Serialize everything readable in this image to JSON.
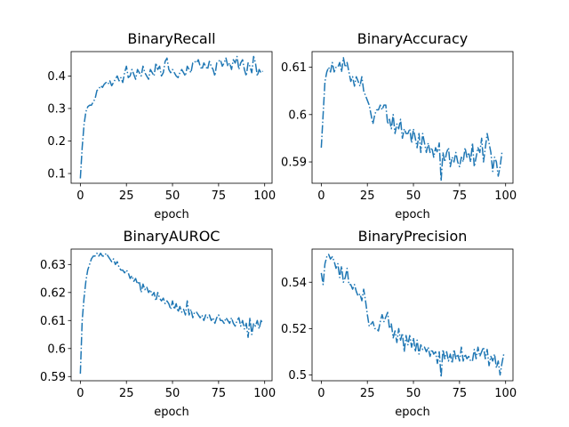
{
  "chart_data": [
    {
      "type": "line",
      "title": "BinaryRecall",
      "xlabel": "epoch",
      "ylabel": "",
      "xlim": [
        -5,
        104
      ],
      "ylim": [
        0.07,
        0.475
      ],
      "xticks": [
        0,
        25,
        50,
        75,
        100
      ],
      "yticks": [
        0.1,
        0.2,
        0.3,
        0.4
      ],
      "line_style": "dashdot",
      "color": "#1f77b4",
      "grid": false,
      "series": [
        {
          "x": [
            0,
            1,
            2,
            3,
            4,
            5,
            6,
            7,
            8,
            9,
            10,
            11,
            12,
            13,
            14,
            15,
            16,
            17,
            18,
            19,
            20,
            21,
            22,
            23,
            24,
            25,
            26,
            27,
            28,
            29,
            30,
            31,
            32,
            33,
            34,
            35,
            36,
            37,
            38,
            39,
            40,
            41,
            42,
            43,
            44,
            45,
            46,
            47,
            48,
            49,
            50,
            51,
            52,
            53,
            54,
            55,
            56,
            57,
            58,
            59,
            60,
            61,
            62,
            63,
            64,
            65,
            66,
            67,
            68,
            69,
            70,
            71,
            72,
            73,
            74,
            75,
            76,
            77,
            78,
            79,
            80,
            81,
            82,
            83,
            84,
            85,
            86,
            87,
            88,
            89,
            90,
            91,
            92,
            93,
            94,
            95,
            96,
            97,
            98,
            99
          ],
          "values": [
            0.085,
            0.18,
            0.25,
            0.29,
            0.305,
            0.31,
            0.31,
            0.32,
            0.33,
            0.355,
            0.36,
            0.37,
            0.365,
            0.375,
            0.38,
            0.375,
            0.385,
            0.37,
            0.38,
            0.39,
            0.4,
            0.385,
            0.395,
            0.38,
            0.41,
            0.43,
            0.395,
            0.4,
            0.42,
            0.405,
            0.39,
            0.42,
            0.41,
            0.4,
            0.43,
            0.41,
            0.4,
            0.39,
            0.42,
            0.41,
            0.4,
            0.44,
            0.42,
            0.43,
            0.4,
            0.41,
            0.445,
            0.455,
            0.42,
            0.41,
            0.42,
            0.41,
            0.4,
            0.395,
            0.41,
            0.42,
            0.41,
            0.4,
            0.43,
            0.42,
            0.41,
            0.44,
            0.445,
            0.44,
            0.45,
            0.43,
            0.42,
            0.44,
            0.43,
            0.42,
            0.445,
            0.43,
            0.42,
            0.4,
            0.44,
            0.445,
            0.45,
            0.43,
            0.44,
            0.455,
            0.43,
            0.44,
            0.42,
            0.45,
            0.44,
            0.46,
            0.42,
            0.44,
            0.45,
            0.42,
            0.4,
            0.44,
            0.43,
            0.41,
            0.46,
            0.44,
            0.4,
            0.42,
            0.41,
            0.415
          ]
        }
      ]
    },
    {
      "type": "line",
      "title": "BinaryAccuracy",
      "xlabel": "epoch",
      "ylabel": "",
      "xlim": [
        -5,
        104
      ],
      "ylim": [
        0.5855,
        0.6133
      ],
      "xticks": [
        0,
        25,
        50,
        75,
        100
      ],
      "yticks": [
        0.59,
        0.6,
        0.61
      ],
      "line_style": "dashdot",
      "color": "#1f77b4",
      "grid": false,
      "series": [
        {
          "x": [
            0,
            1,
            2,
            3,
            4,
            5,
            6,
            7,
            8,
            9,
            10,
            11,
            12,
            13,
            14,
            15,
            16,
            17,
            18,
            19,
            20,
            21,
            22,
            23,
            24,
            25,
            26,
            27,
            28,
            29,
            30,
            31,
            32,
            33,
            34,
            35,
            36,
            37,
            38,
            39,
            40,
            41,
            42,
            43,
            44,
            45,
            46,
            47,
            48,
            49,
            50,
            51,
            52,
            53,
            54,
            55,
            56,
            57,
            58,
            59,
            60,
            61,
            62,
            63,
            64,
            65,
            66,
            67,
            68,
            69,
            70,
            71,
            72,
            73,
            74,
            75,
            76,
            77,
            78,
            79,
            80,
            81,
            82,
            83,
            84,
            85,
            86,
            87,
            88,
            89,
            90,
            91,
            92,
            93,
            94,
            95,
            96,
            97,
            98,
            99
          ],
          "values": [
            0.593,
            0.6,
            0.607,
            0.609,
            0.61,
            0.609,
            0.611,
            0.609,
            0.61,
            0.61,
            0.611,
            0.609,
            0.612,
            0.61,
            0.611,
            0.609,
            0.607,
            0.608,
            0.606,
            0.608,
            0.607,
            0.606,
            0.608,
            0.605,
            0.604,
            0.603,
            0.602,
            0.6,
            0.598,
            0.6,
            0.601,
            0.601,
            0.602,
            0.601,
            0.602,
            0.602,
            0.598,
            0.599,
            0.597,
            0.6,
            0.596,
            0.598,
            0.597,
            0.599,
            0.595,
            0.597,
            0.596,
            0.596,
            0.597,
            0.594,
            0.597,
            0.595,
            0.593,
            0.596,
            0.592,
            0.596,
            0.594,
            0.592,
            0.594,
            0.592,
            0.593,
            0.591,
            0.593,
            0.592,
            0.594,
            0.586,
            0.592,
            0.59,
            0.592,
            0.593,
            0.589,
            0.591,
            0.59,
            0.592,
            0.59,
            0.589,
            0.591,
            0.59,
            0.593,
            0.591,
            0.592,
            0.59,
            0.594,
            0.589,
            0.591,
            0.593,
            0.592,
            0.595,
            0.59,
            0.593,
            0.596,
            0.594,
            0.592,
            0.588,
            0.591,
            0.59,
            0.587,
            0.589,
            0.592,
            0.592
          ]
        }
      ]
    },
    {
      "type": "line",
      "title": "BinaryAUROC",
      "xlabel": "epoch",
      "ylabel": "",
      "xlim": [
        -5,
        104
      ],
      "ylim": [
        0.5885,
        0.6355
      ],
      "xticks": [
        0,
        25,
        50,
        75,
        100
      ],
      "yticks": [
        0.59,
        0.6,
        0.61,
        0.62,
        0.63
      ],
      "line_style": "dashdot",
      "color": "#1f77b4",
      "grid": false,
      "series": [
        {
          "x": [
            0,
            1,
            2,
            3,
            4,
            5,
            6,
            7,
            8,
            9,
            10,
            11,
            12,
            13,
            14,
            15,
            16,
            17,
            18,
            19,
            20,
            21,
            22,
            23,
            24,
            25,
            26,
            27,
            28,
            29,
            30,
            31,
            32,
            33,
            34,
            35,
            36,
            37,
            38,
            39,
            40,
            41,
            42,
            43,
            44,
            45,
            46,
            47,
            48,
            49,
            50,
            51,
            52,
            53,
            54,
            55,
            56,
            57,
            58,
            59,
            60,
            61,
            62,
            63,
            64,
            65,
            66,
            67,
            68,
            69,
            70,
            71,
            72,
            73,
            74,
            75,
            76,
            77,
            78,
            79,
            80,
            81,
            82,
            83,
            84,
            85,
            86,
            87,
            88,
            89,
            90,
            91,
            92,
            93,
            94,
            95,
            96,
            97,
            98,
            99
          ],
          "values": [
            0.591,
            0.61,
            0.618,
            0.624,
            0.628,
            0.63,
            0.632,
            0.633,
            0.633,
            0.634,
            0.633,
            0.634,
            0.633,
            0.633,
            0.634,
            0.633,
            0.632,
            0.631,
            0.632,
            0.63,
            0.631,
            0.629,
            0.628,
            0.628,
            0.627,
            0.628,
            0.627,
            0.625,
            0.626,
            0.624,
            0.625,
            0.623,
            0.624,
            0.62,
            0.623,
            0.621,
            0.622,
            0.62,
            0.621,
            0.619,
            0.62,
            0.617,
            0.62,
            0.618,
            0.617,
            0.618,
            0.616,
            0.617,
            0.616,
            0.614,
            0.617,
            0.614,
            0.616,
            0.613,
            0.615,
            0.613,
            0.614,
            0.612,
            0.617,
            0.612,
            0.614,
            0.611,
            0.613,
            0.613,
            0.612,
            0.611,
            0.612,
            0.61,
            0.612,
            0.611,
            0.612,
            0.61,
            0.611,
            0.609,
            0.611,
            0.612,
            0.61,
            0.61,
            0.609,
            0.611,
            0.61,
            0.609,
            0.611,
            0.609,
            0.608,
            0.61,
            0.611,
            0.608,
            0.61,
            0.607,
            0.609,
            0.604,
            0.611,
            0.605,
            0.609,
            0.608,
            0.61,
            0.607,
            0.61,
            0.609
          ]
        }
      ]
    },
    {
      "type": "line",
      "title": "BinaryPrecision",
      "xlabel": "epoch",
      "ylabel": "",
      "xlim": [
        -5,
        104
      ],
      "ylim": [
        0.4975,
        0.5543
      ],
      "xticks": [
        0,
        25,
        50,
        75,
        100
      ],
      "yticks": [
        0.5,
        0.52,
        0.54
      ],
      "line_style": "dashdot",
      "color": "#1f77b4",
      "grid": false,
      "series": [
        {
          "x": [
            0,
            1,
            2,
            3,
            4,
            5,
            6,
            7,
            8,
            9,
            10,
            11,
            12,
            13,
            14,
            15,
            16,
            17,
            18,
            19,
            20,
            21,
            22,
            23,
            24,
            25,
            26,
            27,
            28,
            29,
            30,
            31,
            32,
            33,
            34,
            35,
            36,
            37,
            38,
            39,
            40,
            41,
            42,
            43,
            44,
            45,
            46,
            47,
            48,
            49,
            50,
            51,
            52,
            53,
            54,
            55,
            56,
            57,
            58,
            59,
            60,
            61,
            62,
            63,
            64,
            65,
            66,
            67,
            68,
            69,
            70,
            71,
            72,
            73,
            74,
            75,
            76,
            77,
            78,
            79,
            80,
            81,
            82,
            83,
            84,
            85,
            86,
            87,
            88,
            89,
            90,
            91,
            92,
            93,
            94,
            95,
            96,
            97,
            98,
            99
          ],
          "values": [
            0.544,
            0.539,
            0.548,
            0.551,
            0.552,
            0.55,
            0.551,
            0.549,
            0.546,
            0.548,
            0.542,
            0.547,
            0.54,
            0.542,
            0.546,
            0.539,
            0.539,
            0.537,
            0.539,
            0.536,
            0.534,
            0.535,
            0.532,
            0.537,
            0.532,
            0.526,
            0.521,
            0.522,
            0.523,
            0.52,
            0.52,
            0.519,
            0.523,
            0.526,
            0.523,
            0.525,
            0.527,
            0.52,
            0.522,
            0.516,
            0.519,
            0.514,
            0.52,
            0.515,
            0.518,
            0.51,
            0.517,
            0.513,
            0.517,
            0.512,
            0.516,
            0.51,
            0.515,
            0.509,
            0.513,
            0.511,
            0.512,
            0.51,
            0.512,
            0.508,
            0.511,
            0.509,
            0.51,
            0.505,
            0.51,
            0.499,
            0.511,
            0.507,
            0.51,
            0.506,
            0.509,
            0.505,
            0.511,
            0.507,
            0.509,
            0.506,
            0.512,
            0.506,
            0.509,
            0.507,
            0.508,
            0.506,
            0.506,
            0.511,
            0.507,
            0.512,
            0.508,
            0.51,
            0.512,
            0.507,
            0.511,
            0.504,
            0.508,
            0.506,
            0.509,
            0.503,
            0.506,
            0.5,
            0.505,
            0.509
          ]
        }
      ]
    }
  ]
}
